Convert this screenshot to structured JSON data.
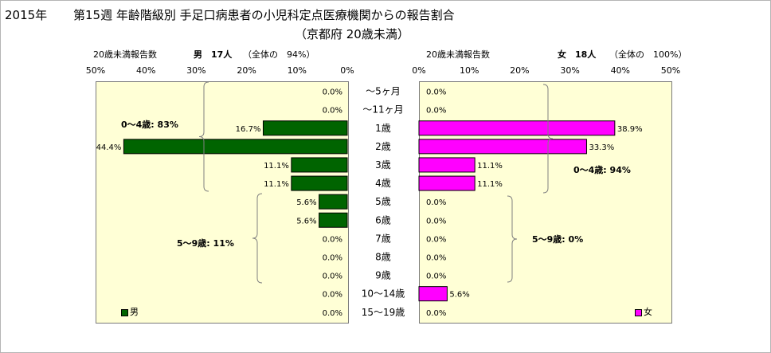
{
  "header": {
    "year": "2015年",
    "title": "第15週 年齢階級別 手足口病患者の小児科定点医療機関からの報告割合",
    "subtitle": "（京都府 20歳未満）"
  },
  "male_panel": {
    "subtitle": "20歳未満報告数",
    "count_text": "男　17人",
    "share_text": "（全体の　94%）",
    "ticks": [
      "50%",
      "40%",
      "30%",
      "20%",
      "10%",
      "0%"
    ],
    "legend": "男",
    "group_labels": [
      "0～4歳: 83%",
      "5～9歳: 11%"
    ]
  },
  "female_panel": {
    "subtitle": "20歳未満報告数",
    "count_text": "女　18人",
    "share_text": "（全体の　100%）",
    "ticks": [
      "0%",
      "10%",
      "20%",
      "30%",
      "40%",
      "50%"
    ],
    "legend": "女",
    "group_labels": [
      "0～4歳: 94%",
      "5～9歳: 0%"
    ]
  },
  "chart_data": {
    "type": "bar",
    "categories": [
      "～5ヶ月",
      "～11ヶ月",
      "1歳",
      "2歳",
      "3歳",
      "4歳",
      "5歳",
      "6歳",
      "7歳",
      "8歳",
      "9歳",
      "10～14歳",
      "15～19歳"
    ],
    "series": [
      {
        "name": "男",
        "values": [
          0.0,
          0.0,
          16.7,
          44.4,
          11.1,
          11.1,
          5.6,
          5.6,
          0.0,
          0.0,
          0.0,
          0.0,
          0.0
        ],
        "labels": [
          "0.0%",
          "0.0%",
          "16.7%",
          "44.4%",
          "11.1%",
          "11.1%",
          "5.6%",
          "5.6%",
          "0.0%",
          "0.0%",
          "0.0%",
          "0.0%",
          "0.0%"
        ]
      },
      {
        "name": "女",
        "values": [
          0.0,
          0.0,
          38.9,
          33.3,
          11.1,
          11.1,
          0.0,
          0.0,
          0.0,
          0.0,
          0.0,
          5.6,
          0.0
        ],
        "labels": [
          "0.0%",
          "0.0%",
          "38.9%",
          "33.3%",
          "11.1%",
          "11.1%",
          "0.0%",
          "0.0%",
          "0.0%",
          "0.0%",
          "0.0%",
          "5.6%",
          "0.0%"
        ]
      }
    ],
    "xlim": [
      0,
      50
    ],
    "colors": {
      "male": "#006400",
      "female": "#ff00ff"
    },
    "grid": false
  }
}
